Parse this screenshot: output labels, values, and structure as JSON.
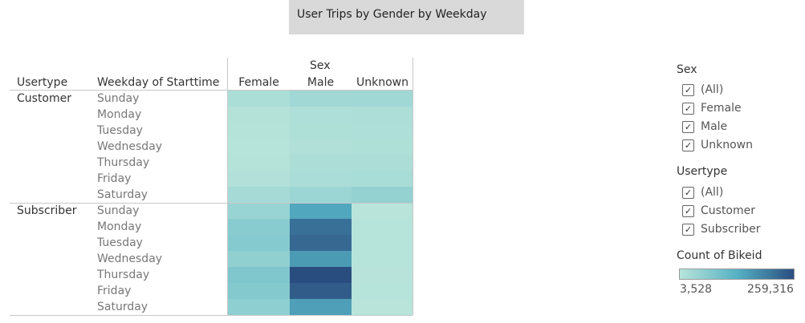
{
  "title": "User Trips by Gender by Weekday",
  "table": {
    "col_headers": {
      "usertype": "Usertype",
      "weekday": "Weekday of Starttime"
    },
    "sex_header": "Sex"
  },
  "filters": {
    "sex": {
      "title": "Sex",
      "options": [
        {
          "label": "(All)",
          "checked": true
        },
        {
          "label": "Female",
          "checked": true
        },
        {
          "label": "Male",
          "checked": true
        },
        {
          "label": "Unknown",
          "checked": true
        }
      ]
    },
    "usertype": {
      "title": "Usertype",
      "options": [
        {
          "label": "(All)",
          "checked": true
        },
        {
          "label": "Customer",
          "checked": true
        },
        {
          "label": "Subscriber",
          "checked": true
        }
      ]
    }
  },
  "color_legend": {
    "title": "Count of Bikeid",
    "min_label": "3,528",
    "max_label": "259,316",
    "colors": [
      "#b8e4da",
      "#56b2c4",
      "#2a4d80"
    ]
  },
  "chart_data": {
    "type": "heatmap",
    "title": "User Trips by Gender by Weekday",
    "row_dims": [
      "Usertype",
      "Weekday of Starttime"
    ],
    "column_dim": "Sex",
    "columns": [
      "Female",
      "Male",
      "Unknown"
    ],
    "value_label": "Count of Bikeid",
    "color_range": [
      3528,
      259316
    ],
    "groups": [
      {
        "usertype": "Customer",
        "rows": [
          {
            "weekday": "Sunday",
            "values": [
              20000,
              33000,
              35000
            ]
          },
          {
            "weekday": "Monday",
            "values": [
              9000,
              17000,
              18000
            ]
          },
          {
            "weekday": "Tuesday",
            "values": [
              7000,
              15000,
              16000
            ]
          },
          {
            "weekday": "Wednesday",
            "values": [
              6000,
              14000,
              15000
            ]
          },
          {
            "weekday": "Thursday",
            "values": [
              8000,
              19000,
              19000
            ]
          },
          {
            "weekday": "Friday",
            "values": [
              10000,
              22000,
              24000
            ]
          },
          {
            "weekday": "Saturday",
            "values": [
              28000,
              40000,
              50000
            ]
          }
        ]
      },
      {
        "usertype": "Subscriber",
        "rows": [
          {
            "weekday": "Sunday",
            "values": [
              45000,
              145000,
              4000
            ]
          },
          {
            "weekday": "Monday",
            "values": [
              65000,
              215000,
              4500
            ]
          },
          {
            "weekday": "Tuesday",
            "values": [
              70000,
              225000,
              4500
            ]
          },
          {
            "weekday": "Wednesday",
            "values": [
              55000,
              160000,
              4500
            ]
          },
          {
            "weekday": "Thursday",
            "values": [
              78000,
              259316,
              5000
            ]
          },
          {
            "weekday": "Friday",
            "values": [
              72000,
              240000,
              4500
            ]
          },
          {
            "weekday": "Saturday",
            "values": [
              58000,
              155000,
              3528
            ]
          }
        ]
      }
    ]
  }
}
